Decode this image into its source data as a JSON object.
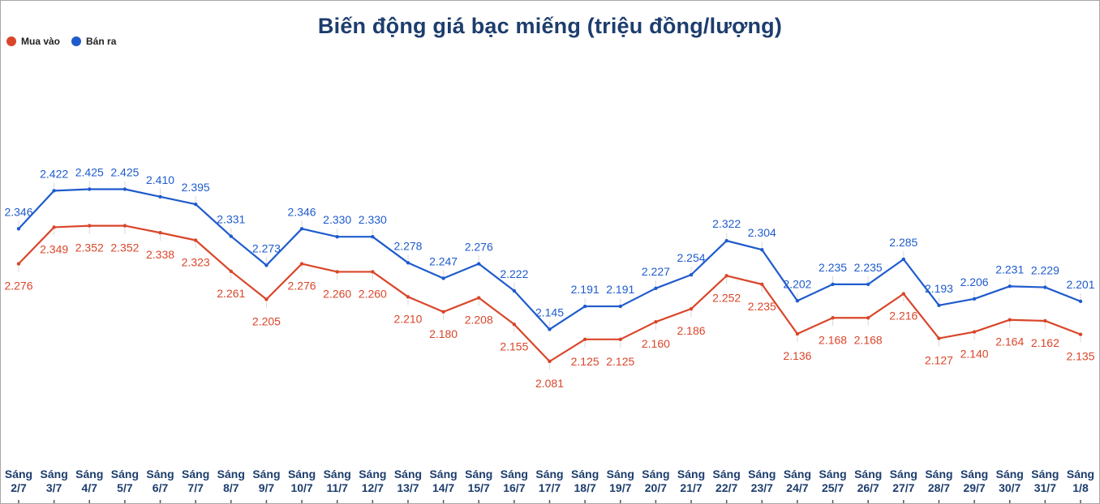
{
  "chart_data": {
    "type": "line",
    "title": "Biến động giá bạc miếng (triệu đồng/lượng)",
    "categories_line1": [
      "Sáng",
      "Sáng",
      "Sáng",
      "Sáng",
      "Sáng",
      "Sáng",
      "Sáng",
      "Sáng",
      "Sáng",
      "Sáng",
      "Sáng",
      "Sáng",
      "Sáng",
      "Sáng",
      "Sáng",
      "Sáng",
      "Sáng",
      "Sáng",
      "Sáng",
      "Sáng",
      "Sáng",
      "Sáng",
      "Sáng",
      "Sáng",
      "Sáng",
      "Sáng",
      "Sáng",
      "Sáng",
      "Sáng",
      "Sáng",
      "Sáng"
    ],
    "categories_line2": [
      "2/7",
      "3/7",
      "4/7",
      "5/7",
      "6/7",
      "7/7",
      "8/7",
      "9/7",
      "10/7",
      "11/7",
      "12/7",
      "13/7",
      "14/7",
      "15/7",
      "16/7",
      "17/7",
      "18/7",
      "19/7",
      "20/7",
      "21/7",
      "22/7",
      "23/7",
      "24/7",
      "25/7",
      "26/7",
      "27/7",
      "28/7",
      "29/7",
      "30/7",
      "31/7",
      "1/8"
    ],
    "series": [
      {
        "name": "Mua vào",
        "color": "#d9462a",
        "values": [
          2.276,
          2.349,
          2.352,
          2.352,
          2.338,
          2.323,
          2.261,
          2.205,
          2.276,
          2.26,
          2.26,
          2.21,
          2.18,
          2.208,
          2.155,
          2.081,
          2.125,
          2.125,
          2.16,
          2.186,
          2.252,
          2.235,
          2.136,
          2.168,
          2.168,
          2.216,
          2.127,
          2.14,
          2.164,
          2.162,
          2.135
        ],
        "labels": [
          "2.276",
          "2.349",
          "2.352",
          "2.352",
          "2.338",
          "2.323",
          "2.261",
          "2.205",
          "2.276",
          "2.260",
          "2.260",
          "2.210",
          "2.180",
          "2.208",
          "2.155",
          "2.081",
          "2.125",
          "2.125",
          "2.160",
          "2.186",
          "2.252",
          "2.235",
          "2.136",
          "2.168",
          "2.168",
          "2.216",
          "2.127",
          "2.140",
          "2.164",
          "2.162",
          "2.135"
        ]
      },
      {
        "name": "Bán ra",
        "color": "#1f5bcc",
        "values": [
          2.346,
          2.422,
          2.425,
          2.425,
          2.41,
          2.395,
          2.331,
          2.273,
          2.346,
          2.33,
          2.33,
          2.278,
          2.247,
          2.276,
          2.222,
          2.145,
          2.191,
          2.191,
          2.227,
          2.254,
          2.322,
          2.304,
          2.202,
          2.235,
          2.235,
          2.285,
          2.193,
          2.206,
          2.231,
          2.229,
          2.201
        ],
        "labels": [
          "2.346",
          "2.422",
          "2.425",
          "2.425",
          "2.410",
          "2.395",
          "2.331",
          "2.273",
          "2.346",
          "2.330",
          "2.330",
          "2.278",
          "2.247",
          "2.276",
          "2.222",
          "2.145",
          "2.191",
          "2.191",
          "2.227",
          "2.254",
          "2.322",
          "2.304",
          "2.202",
          "2.235",
          "2.235",
          "2.285",
          "2.193",
          "2.206",
          "2.231",
          "2.229",
          "2.201"
        ]
      }
    ],
    "legend_placement": "top-left",
    "grid": false
  }
}
